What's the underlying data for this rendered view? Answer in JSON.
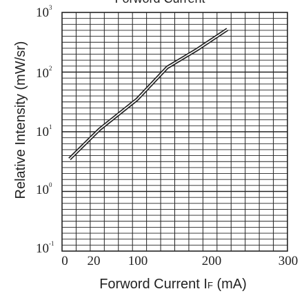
{
  "chart_data": {
    "type": "line",
    "title": "Forword Current",
    "xlabel_main": "Forword Current I",
    "xlabel_sub": "F",
    "xlabel_unit": " (mA)",
    "ylabel": "Relative Intensity (mW/sr)",
    "x_ticks": [
      "0",
      "20",
      "100",
      "200",
      "300"
    ],
    "y_ticks": [
      {
        "base": "10",
        "exp": "3"
      },
      {
        "base": "10",
        "exp": "2"
      },
      {
        "base": "10",
        "exp": "1"
      },
      {
        "base": "10",
        "exp": "0"
      },
      {
        "base": "10",
        "exp": "-1"
      }
    ],
    "xlim": [
      0,
      300
    ],
    "ylim": [
      0.1,
      1000
    ],
    "y_scale": "log",
    "grid": true,
    "series": [
      {
        "points": [
          [
            10,
            3.5
          ],
          [
            50,
            11
          ],
          [
            100,
            35
          ],
          [
            140,
            120
          ],
          [
            180,
            240
          ],
          [
            220,
            520
          ]
        ]
      }
    ]
  }
}
